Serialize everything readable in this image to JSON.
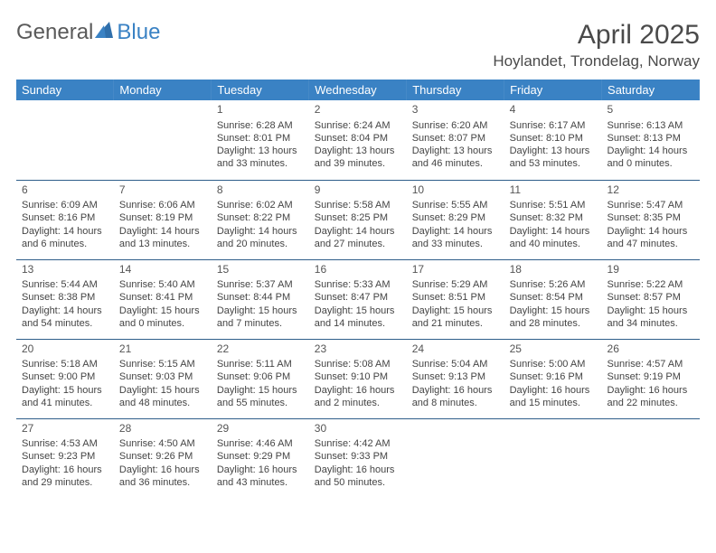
{
  "logo": {
    "part1": "General",
    "part2": "Blue"
  },
  "title": "April 2025",
  "location": "Hoylandet, Trondelag, Norway",
  "header_bg": "#3a82c4",
  "header_text_color": "#ffffff",
  "row_border_color": "#2f5e8a",
  "body_text_color": "#444444",
  "weekdays": [
    "Sunday",
    "Monday",
    "Tuesday",
    "Wednesday",
    "Thursday",
    "Friday",
    "Saturday"
  ],
  "weeks": [
    [
      null,
      null,
      {
        "n": "1",
        "sunrise": "Sunrise: 6:28 AM",
        "sunset": "Sunset: 8:01 PM",
        "daylight": "Daylight: 13 hours and 33 minutes."
      },
      {
        "n": "2",
        "sunrise": "Sunrise: 6:24 AM",
        "sunset": "Sunset: 8:04 PM",
        "daylight": "Daylight: 13 hours and 39 minutes."
      },
      {
        "n": "3",
        "sunrise": "Sunrise: 6:20 AM",
        "sunset": "Sunset: 8:07 PM",
        "daylight": "Daylight: 13 hours and 46 minutes."
      },
      {
        "n": "4",
        "sunrise": "Sunrise: 6:17 AM",
        "sunset": "Sunset: 8:10 PM",
        "daylight": "Daylight: 13 hours and 53 minutes."
      },
      {
        "n": "5",
        "sunrise": "Sunrise: 6:13 AM",
        "sunset": "Sunset: 8:13 PM",
        "daylight": "Daylight: 14 hours and 0 minutes."
      }
    ],
    [
      {
        "n": "6",
        "sunrise": "Sunrise: 6:09 AM",
        "sunset": "Sunset: 8:16 PM",
        "daylight": "Daylight: 14 hours and 6 minutes."
      },
      {
        "n": "7",
        "sunrise": "Sunrise: 6:06 AM",
        "sunset": "Sunset: 8:19 PM",
        "daylight": "Daylight: 14 hours and 13 minutes."
      },
      {
        "n": "8",
        "sunrise": "Sunrise: 6:02 AM",
        "sunset": "Sunset: 8:22 PM",
        "daylight": "Daylight: 14 hours and 20 minutes."
      },
      {
        "n": "9",
        "sunrise": "Sunrise: 5:58 AM",
        "sunset": "Sunset: 8:25 PM",
        "daylight": "Daylight: 14 hours and 27 minutes."
      },
      {
        "n": "10",
        "sunrise": "Sunrise: 5:55 AM",
        "sunset": "Sunset: 8:29 PM",
        "daylight": "Daylight: 14 hours and 33 minutes."
      },
      {
        "n": "11",
        "sunrise": "Sunrise: 5:51 AM",
        "sunset": "Sunset: 8:32 PM",
        "daylight": "Daylight: 14 hours and 40 minutes."
      },
      {
        "n": "12",
        "sunrise": "Sunrise: 5:47 AM",
        "sunset": "Sunset: 8:35 PM",
        "daylight": "Daylight: 14 hours and 47 minutes."
      }
    ],
    [
      {
        "n": "13",
        "sunrise": "Sunrise: 5:44 AM",
        "sunset": "Sunset: 8:38 PM",
        "daylight": "Daylight: 14 hours and 54 minutes."
      },
      {
        "n": "14",
        "sunrise": "Sunrise: 5:40 AM",
        "sunset": "Sunset: 8:41 PM",
        "daylight": "Daylight: 15 hours and 0 minutes."
      },
      {
        "n": "15",
        "sunrise": "Sunrise: 5:37 AM",
        "sunset": "Sunset: 8:44 PM",
        "daylight": "Daylight: 15 hours and 7 minutes."
      },
      {
        "n": "16",
        "sunrise": "Sunrise: 5:33 AM",
        "sunset": "Sunset: 8:47 PM",
        "daylight": "Daylight: 15 hours and 14 minutes."
      },
      {
        "n": "17",
        "sunrise": "Sunrise: 5:29 AM",
        "sunset": "Sunset: 8:51 PM",
        "daylight": "Daylight: 15 hours and 21 minutes."
      },
      {
        "n": "18",
        "sunrise": "Sunrise: 5:26 AM",
        "sunset": "Sunset: 8:54 PM",
        "daylight": "Daylight: 15 hours and 28 minutes."
      },
      {
        "n": "19",
        "sunrise": "Sunrise: 5:22 AM",
        "sunset": "Sunset: 8:57 PM",
        "daylight": "Daylight: 15 hours and 34 minutes."
      }
    ],
    [
      {
        "n": "20",
        "sunrise": "Sunrise: 5:18 AM",
        "sunset": "Sunset: 9:00 PM",
        "daylight": "Daylight: 15 hours and 41 minutes."
      },
      {
        "n": "21",
        "sunrise": "Sunrise: 5:15 AM",
        "sunset": "Sunset: 9:03 PM",
        "daylight": "Daylight: 15 hours and 48 minutes."
      },
      {
        "n": "22",
        "sunrise": "Sunrise: 5:11 AM",
        "sunset": "Sunset: 9:06 PM",
        "daylight": "Daylight: 15 hours and 55 minutes."
      },
      {
        "n": "23",
        "sunrise": "Sunrise: 5:08 AM",
        "sunset": "Sunset: 9:10 PM",
        "daylight": "Daylight: 16 hours and 2 minutes."
      },
      {
        "n": "24",
        "sunrise": "Sunrise: 5:04 AM",
        "sunset": "Sunset: 9:13 PM",
        "daylight": "Daylight: 16 hours and 8 minutes."
      },
      {
        "n": "25",
        "sunrise": "Sunrise: 5:00 AM",
        "sunset": "Sunset: 9:16 PM",
        "daylight": "Daylight: 16 hours and 15 minutes."
      },
      {
        "n": "26",
        "sunrise": "Sunrise: 4:57 AM",
        "sunset": "Sunset: 9:19 PM",
        "daylight": "Daylight: 16 hours and 22 minutes."
      }
    ],
    [
      {
        "n": "27",
        "sunrise": "Sunrise: 4:53 AM",
        "sunset": "Sunset: 9:23 PM",
        "daylight": "Daylight: 16 hours and 29 minutes."
      },
      {
        "n": "28",
        "sunrise": "Sunrise: 4:50 AM",
        "sunset": "Sunset: 9:26 PM",
        "daylight": "Daylight: 16 hours and 36 minutes."
      },
      {
        "n": "29",
        "sunrise": "Sunrise: 4:46 AM",
        "sunset": "Sunset: 9:29 PM",
        "daylight": "Daylight: 16 hours and 43 minutes."
      },
      {
        "n": "30",
        "sunrise": "Sunrise: 4:42 AM",
        "sunset": "Sunset: 9:33 PM",
        "daylight": "Daylight: 16 hours and 50 minutes."
      },
      null,
      null,
      null
    ]
  ]
}
